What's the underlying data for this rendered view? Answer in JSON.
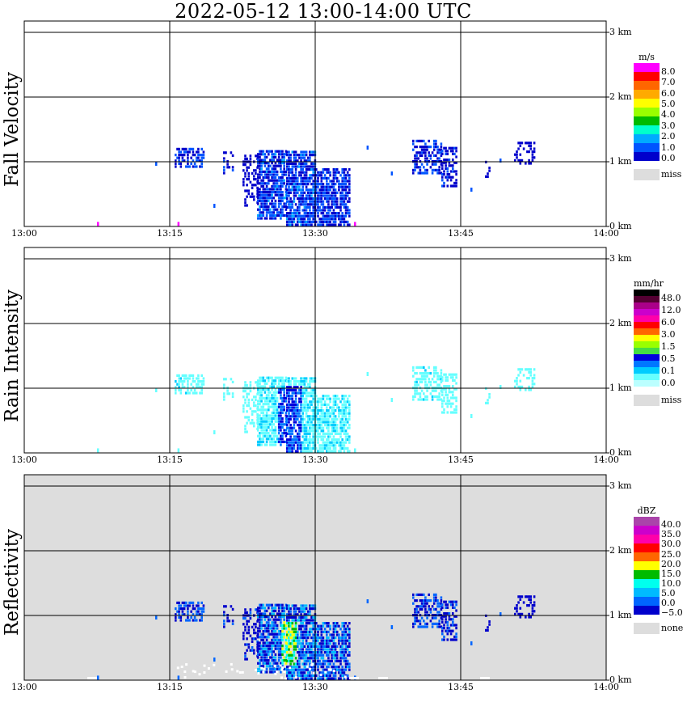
{
  "title": "2022-05-12   13:00-14:00 UTC",
  "chart_data": [
    {
      "type": "heatmap",
      "title": "Fall Velocity",
      "x_ticks": [
        "13:00",
        "13:15",
        "13:30",
        "13:45",
        "14:00"
      ],
      "y_ticks": [
        "0 km",
        "1 km",
        "2 km",
        "3 km"
      ],
      "xlim": [
        "13:00",
        "14:00"
      ],
      "ylim_km": [
        0,
        3.0
      ],
      "grid": true,
      "background": "#ffffff",
      "legend": {
        "unit": "m/s",
        "labels": [
          "8.0",
          "7.0",
          "6.0",
          "5.0",
          "4.0",
          "3.0",
          "2.0",
          "1.0",
          "0.0"
        ],
        "colors": [
          "#ff00ff",
          "#ff0000",
          "#ff6600",
          "#ffaa00",
          "#ffff00",
          "#99ff00",
          "#00bb00",
          "#00ffcc",
          "#00aaff",
          "#0055ff",
          "#0000cc"
        ],
        "miss_label": "miss",
        "miss_color": "#dddddd"
      }
    },
    {
      "type": "heatmap",
      "title": "Rain Intensity",
      "x_ticks": [
        "13:00",
        "13:15",
        "13:30",
        "13:45",
        "14:00"
      ],
      "y_ticks": [
        "0 km",
        "1 km",
        "2 km",
        "3 km"
      ],
      "xlim": [
        "13:00",
        "14:00"
      ],
      "ylim_km": [
        0,
        3.0
      ],
      "grid": true,
      "background": "#ffffff",
      "legend": {
        "unit": "mm/hr",
        "labels": [
          "48.0",
          "12.0",
          "6.0",
          "3.0",
          "1.5",
          "0.5",
          "0.1",
          "0.0"
        ],
        "colors": [
          "#000000",
          "#550033",
          "#aa0088",
          "#cc00cc",
          "#ff00aa",
          "#ff0000",
          "#ff6600",
          "#ffff00",
          "#99ff00",
          "#44dd44",
          "#0000dd",
          "#0077ff",
          "#00ccff",
          "#66ffff",
          "#bbffff"
        ],
        "miss_label": "miss",
        "miss_color": "#dddddd"
      }
    },
    {
      "type": "heatmap",
      "title": "Reflectivity",
      "x_ticks": [
        "13:00",
        "13:15",
        "13:30",
        "13:45",
        "14:00"
      ],
      "y_ticks": [
        "0 km",
        "1 km",
        "2 km",
        "3 km"
      ],
      "xlim": [
        "13:00",
        "14:00"
      ],
      "ylim_km": [
        0,
        3.0
      ],
      "grid": true,
      "background": "#dddddd",
      "legend": {
        "unit": "dBZ",
        "labels": [
          "40.0",
          "35.0",
          "30.0",
          "25.0",
          "20.0",
          "15.0",
          "10.0",
          "5.0",
          "0.0",
          "−5.0"
        ],
        "colors": [
          "#aa44aa",
          "#cc00cc",
          "#ff00aa",
          "#ff0000",
          "#ff6600",
          "#ffff00",
          "#00bb00",
          "#00ffee",
          "#00bbff",
          "#0066ff",
          "#0000cc"
        ],
        "miss_label": "none",
        "miss_color": "#dddddd"
      }
    }
  ]
}
